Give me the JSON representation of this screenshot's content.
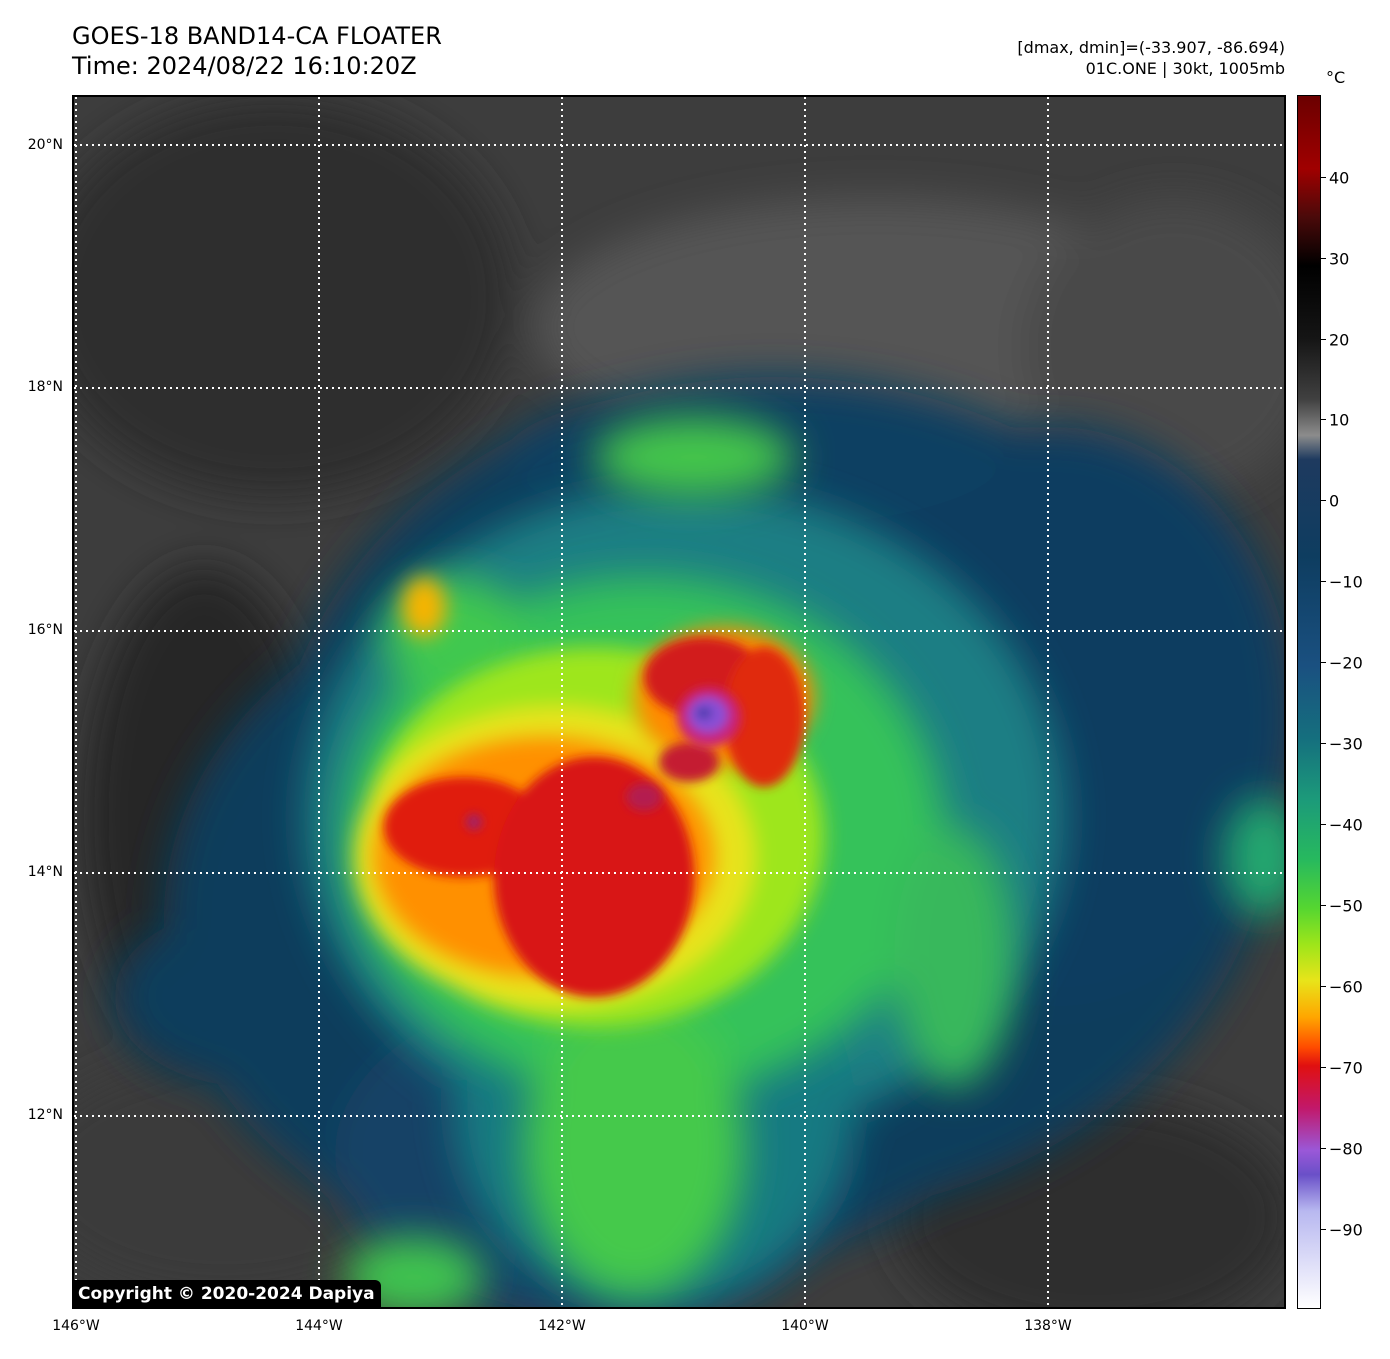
{
  "header": {
    "title_line1": "GOES-18 BAND14-CA FLOATER",
    "title_line2": "Time: 2024/08/22 16:10:20Z",
    "info_line1": "[dmax, dmin]=(-33.907, -86.694)",
    "info_line2": "01C.ONE | 30kt, 1005mb"
  },
  "map": {
    "lat_labels": [
      "20°N",
      "18°N",
      "16°N",
      "14°N",
      "12°N"
    ],
    "lon_labels": [
      "146°W",
      "144°W",
      "142°W",
      "140°W",
      "138°W"
    ],
    "copyright": "Copyright © 2020-2024 Dapiya"
  },
  "colorbar": {
    "unit": "°C",
    "tick_labels": [
      "40",
      "30",
      "20",
      "10",
      "0",
      "−10",
      "−20",
      "−30",
      "−40",
      "−50",
      "−60",
      "−70",
      "−80",
      "−90"
    ]
  }
}
